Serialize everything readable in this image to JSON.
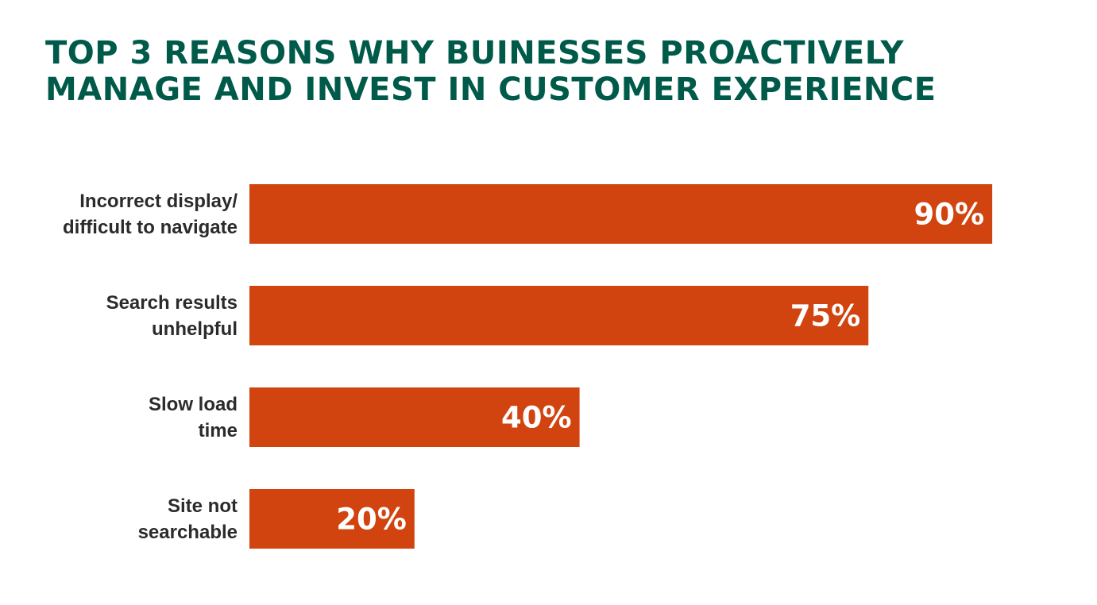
{
  "title_lines": [
    "TOP 3 REASONS WHY BUINESSES PROACTIVELY",
    "MANAGE AND INVEST IN CUSTOMER EXPERIENCE"
  ],
  "colors": {
    "title": "#005a4a",
    "bar": "#d1440f",
    "category_text": "#2b2b2b",
    "value_text": "#ffffff"
  },
  "chart_data": {
    "type": "bar",
    "orientation": "horizontal",
    "title": "TOP 3 REASONS WHY BUINESSES PROACTIVELY MANAGE AND INVEST IN CUSTOMER EXPERIENCE",
    "categories": [
      [
        "Incorrect display/",
        "difficult to navigate"
      ],
      [
        "Search results",
        "unhelpful"
      ],
      [
        "Slow load",
        "time"
      ],
      [
        "Site not",
        "searchable"
      ]
    ],
    "values": [
      90,
      75,
      40,
      20
    ],
    "value_labels": [
      "90%",
      "75%",
      "40%",
      "20%"
    ],
    "xlim": [
      0,
      100
    ],
    "grid": false,
    "legend": "none"
  }
}
